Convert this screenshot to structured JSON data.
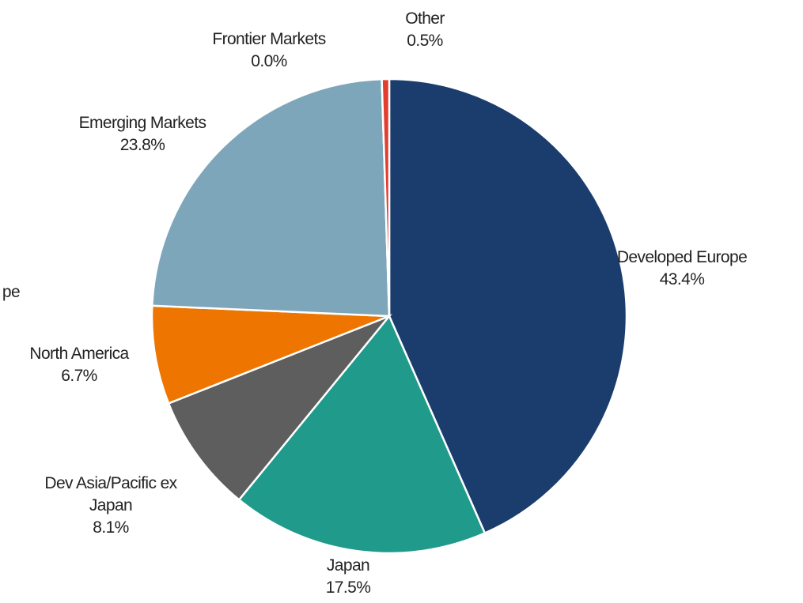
{
  "chart_data": {
    "type": "pie",
    "categories": [
      "Developed Europe",
      "Japan",
      "Dev Asia/Pacific ex Japan",
      "North America",
      "Emerging Markets",
      "Frontier Markets",
      "Other"
    ],
    "values": [
      43.4,
      17.5,
      8.1,
      6.7,
      23.8,
      0.0,
      0.5
    ],
    "value_labels": [
      "43.4%",
      "17.5%",
      "8.1%",
      "6.7%",
      "23.8%",
      "0.0%",
      "0.5%"
    ],
    "colors": [
      "#1a3d6d",
      "#1f9a8b",
      "#5e5e5e",
      "#ee7600",
      "#7ea6ba",
      "#b0b0b0",
      "#e23d2f"
    ],
    "annotations": [
      "pe"
    ]
  }
}
